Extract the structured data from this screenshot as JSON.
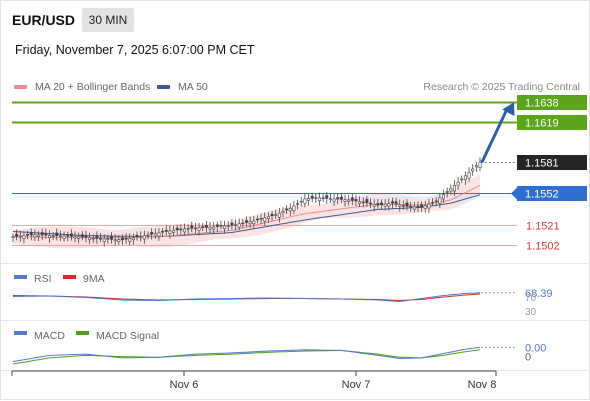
{
  "header": {
    "pair": "EUR/USD",
    "timeframe": "30 MIN",
    "datetime": "Friday, November 7, 2025 6:07:00 PM CET"
  },
  "legend": {
    "ma20": "MA 20 + Bollinger Bands",
    "ma50": "MA 50",
    "research": "Research © 2025 Trading Central"
  },
  "colors": {
    "resistance": "#5aa51a",
    "support": "#f3a6a6",
    "pivot": "#2f6fd1",
    "current": "#262626",
    "ma20": "#f28b8b",
    "ma50": "#3a5a98",
    "bollinger_fill": "#f8d9d9",
    "rsi": "#5577cc",
    "rsi_ma": "#d62828",
    "macd": "#5577cc",
    "macd_signal": "#4aa01a",
    "arrow": "#2c5fa8"
  },
  "chart_data": {
    "type": "candlestick",
    "title": "EUR/USD",
    "timeframe": "30 MIN",
    "x_labels": [
      "Nov 6",
      "Nov 7",
      "Nov 8"
    ],
    "ylim": [
      1.1485,
      1.1643
    ],
    "price_path": [
      [
        0,
        1.151
      ],
      [
        6,
        1.1512
      ],
      [
        12,
        1.1511
      ],
      [
        18,
        1.151
      ],
      [
        24,
        1.1508
      ],
      [
        30,
        1.1507
      ],
      [
        36,
        1.1511
      ],
      [
        42,
        1.1515
      ],
      [
        48,
        1.1518
      ],
      [
        54,
        1.1519
      ],
      [
        60,
        1.1521
      ],
      [
        66,
        1.1525
      ],
      [
        72,
        1.1531
      ],
      [
        76,
        1.1537
      ],
      [
        80,
        1.1546
      ],
      [
        84,
        1.1547
      ],
      [
        88,
        1.1546
      ],
      [
        92,
        1.1545
      ],
      [
        96,
        1.1543
      ],
      [
        100,
        1.154
      ],
      [
        104,
        1.1542
      ],
      [
        108,
        1.1539
      ],
      [
        112,
        1.1538
      ],
      [
        116,
        1.1544
      ],
      [
        120,
        1.1556
      ],
      [
        124,
        1.1568
      ],
      [
        128,
        1.1581
      ]
    ],
    "ma20_path": [
      [
        0,
        1.151
      ],
      [
        20,
        1.1509
      ],
      [
        40,
        1.151
      ],
      [
        60,
        1.1516
      ],
      [
        80,
        1.1532
      ],
      [
        100,
        1.1541
      ],
      [
        112,
        1.154
      ],
      [
        120,
        1.1545
      ],
      [
        128,
        1.1559
      ]
    ],
    "ma50_path": [
      [
        0,
        1.1515
      ],
      [
        20,
        1.1511
      ],
      [
        40,
        1.151
      ],
      [
        60,
        1.1514
      ],
      [
        80,
        1.1526
      ],
      [
        100,
        1.1536
      ],
      [
        112,
        1.1538
      ],
      [
        120,
        1.1542
      ],
      [
        128,
        1.155
      ]
    ],
    "bollinger_half_width": 0.0008,
    "levels": [
      {
        "value": 1.1638,
        "label": "1.1638",
        "kind": "resistance"
      },
      {
        "value": 1.1619,
        "label": "1.1619",
        "kind": "resistance"
      },
      {
        "value": 1.1581,
        "label": "1.1581",
        "kind": "current"
      },
      {
        "value": 1.1552,
        "label": "1.1552",
        "kind": "pivot"
      },
      {
        "value": 1.1521,
        "label": "1.1521",
        "kind": "support"
      },
      {
        "value": 1.1502,
        "label": "1.1502",
        "kind": "support"
      }
    ],
    "rsi": {
      "label": "RSI",
      "ma_label": "9MA",
      "value_label": "68.39",
      "ticks": [
        "70",
        "30"
      ],
      "ylim": [
        20,
        80
      ],
      "path": [
        [
          0,
          61
        ],
        [
          10,
          62
        ],
        [
          20,
          59
        ],
        [
          30,
          54
        ],
        [
          40,
          53
        ],
        [
          50,
          56
        ],
        [
          60,
          57
        ],
        [
          70,
          58
        ],
        [
          80,
          57
        ],
        [
          90,
          56
        ],
        [
          100,
          54
        ],
        [
          106,
          51
        ],
        [
          112,
          57
        ],
        [
          118,
          63
        ],
        [
          124,
          67
        ],
        [
          128,
          68.39
        ]
      ],
      "ma_path": [
        [
          0,
          63
        ],
        [
          10,
          62
        ],
        [
          20,
          60
        ],
        [
          30,
          56
        ],
        [
          40,
          54
        ],
        [
          50,
          55
        ],
        [
          60,
          56
        ],
        [
          70,
          57
        ],
        [
          80,
          57
        ],
        [
          90,
          56
        ],
        [
          100,
          55
        ],
        [
          106,
          53
        ],
        [
          112,
          55
        ],
        [
          118,
          60
        ],
        [
          124,
          64
        ],
        [
          128,
          66
        ]
      ]
    },
    "macd": {
      "label": "MACD",
      "signal_label": "MACD Signal",
      "value_label": "0.00",
      "zero_label": "0",
      "ylim": [
        -0.002,
        0.0022
      ],
      "path": [
        [
          0,
          -0.0008
        ],
        [
          10,
          0.0002
        ],
        [
          20,
          0.0004
        ],
        [
          30,
          -0.0002
        ],
        [
          40,
          -0.0001
        ],
        [
          50,
          0.0004
        ],
        [
          60,
          0.0006
        ],
        [
          70,
          0.0009
        ],
        [
          80,
          0.0011
        ],
        [
          90,
          0.001
        ],
        [
          100,
          0.0002
        ],
        [
          106,
          -0.0003
        ],
        [
          112,
          -0.0002
        ],
        [
          118,
          0.0005
        ],
        [
          124,
          0.0012
        ],
        [
          128,
          0.0015
        ]
      ],
      "signal_path": [
        [
          0,
          -0.0012
        ],
        [
          10,
          -0.0002
        ],
        [
          20,
          0.0002
        ],
        [
          30,
          0.0
        ],
        [
          40,
          -0.0001
        ],
        [
          50,
          0.0002
        ],
        [
          60,
          0.0004
        ],
        [
          70,
          0.0007
        ],
        [
          80,
          0.0009
        ],
        [
          90,
          0.001
        ],
        [
          100,
          0.0004
        ],
        [
          106,
          -0.0001
        ],
        [
          112,
          -0.0002
        ],
        [
          118,
          0.0002
        ],
        [
          124,
          0.0008
        ],
        [
          128,
          0.0011
        ]
      ]
    }
  }
}
